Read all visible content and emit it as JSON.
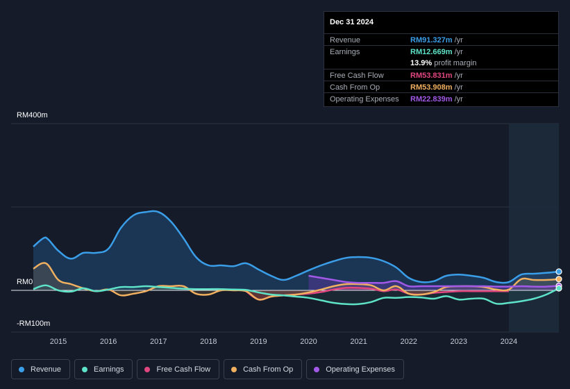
{
  "tooltip": {
    "date": "Dec 31 2024",
    "rows": [
      {
        "label": "Revenue",
        "value": "RM91.327m",
        "unit": " /yr",
        "color": "#3a9ee8"
      },
      {
        "label": "Earnings",
        "value": "RM12.669m",
        "unit": " /yr",
        "color": "#5ee3c8"
      },
      {
        "label": "",
        "value": "13.9%",
        "unit": " profit margin",
        "color": "#ffffff"
      },
      {
        "label": "Free Cash Flow",
        "value": "RM53.831m",
        "unit": " /yr",
        "color": "#e0467f"
      },
      {
        "label": "Cash From Op",
        "value": "RM53.908m",
        "unit": " /yr",
        "color": "#f0b060"
      },
      {
        "label": "Operating Expenses",
        "value": "RM22.839m",
        "unit": " /yr",
        "color": "#a259e8"
      }
    ]
  },
  "chart_data": {
    "type": "area",
    "title": "",
    "xlabel": "",
    "ylabel": "",
    "ylim": [
      -100,
      400
    ],
    "y_tick_labels": [
      "RM400m",
      "RM0",
      "-RM100m"
    ],
    "x_tick_labels": [
      "2015",
      "2016",
      "2017",
      "2018",
      "2019",
      "2020",
      "2021",
      "2022",
      "2023",
      "2024"
    ],
    "x_range": [
      2014.5,
      2025.0
    ],
    "forecast_start": 2024.0,
    "series": [
      {
        "name": "Revenue",
        "color": "#3a9ee8",
        "points": [
          [
            2014.5,
            105
          ],
          [
            2014.7,
            125
          ],
          [
            2014.8,
            122
          ],
          [
            2015.0,
            95
          ],
          [
            2015.25,
            76
          ],
          [
            2015.5,
            90
          ],
          [
            2015.75,
            90
          ],
          [
            2016.0,
            100
          ],
          [
            2016.25,
            150
          ],
          [
            2016.5,
            180
          ],
          [
            2016.75,
            188
          ],
          [
            2017.0,
            188
          ],
          [
            2017.25,
            165
          ],
          [
            2017.5,
            125
          ],
          [
            2017.75,
            80
          ],
          [
            2018.0,
            60
          ],
          [
            2018.25,
            60
          ],
          [
            2018.5,
            58
          ],
          [
            2018.75,
            65
          ],
          [
            2019.0,
            50
          ],
          [
            2019.25,
            35
          ],
          [
            2019.5,
            25
          ],
          [
            2019.75,
            35
          ],
          [
            2020.0,
            48
          ],
          [
            2020.25,
            60
          ],
          [
            2020.5,
            70
          ],
          [
            2020.75,
            78
          ],
          [
            2021.0,
            80
          ],
          [
            2021.25,
            78
          ],
          [
            2021.5,
            70
          ],
          [
            2021.75,
            55
          ],
          [
            2022.0,
            30
          ],
          [
            2022.25,
            20
          ],
          [
            2022.5,
            22
          ],
          [
            2022.75,
            35
          ],
          [
            2023.0,
            38
          ],
          [
            2023.25,
            35
          ],
          [
            2023.5,
            30
          ],
          [
            2023.75,
            20
          ],
          [
            2024.0,
            20
          ],
          [
            2024.25,
            38
          ],
          [
            2024.5,
            40
          ],
          [
            2024.75,
            42
          ],
          [
            2025.0,
            45
          ]
        ]
      },
      {
        "name": "Earnings",
        "color": "#5ee3c8",
        "points": [
          [
            2014.5,
            3
          ],
          [
            2014.75,
            12
          ],
          [
            2015.0,
            0
          ],
          [
            2015.25,
            -3
          ],
          [
            2015.5,
            5
          ],
          [
            2015.75,
            -2
          ],
          [
            2016.0,
            2
          ],
          [
            2016.25,
            8
          ],
          [
            2016.5,
            8
          ],
          [
            2016.75,
            10
          ],
          [
            2017.0,
            8
          ],
          [
            2017.25,
            6
          ],
          [
            2017.5,
            4
          ],
          [
            2017.75,
            3
          ],
          [
            2018.0,
            3
          ],
          [
            2018.25,
            3
          ],
          [
            2018.5,
            2
          ],
          [
            2018.75,
            1
          ],
          [
            2019.0,
            -5
          ],
          [
            2019.25,
            -10
          ],
          [
            2019.5,
            -12
          ],
          [
            2019.75,
            -15
          ],
          [
            2020.0,
            -18
          ],
          [
            2020.25,
            -24
          ],
          [
            2020.5,
            -30
          ],
          [
            2020.75,
            -33
          ],
          [
            2021.0,
            -33
          ],
          [
            2021.25,
            -28
          ],
          [
            2021.5,
            -18
          ],
          [
            2021.75,
            -18
          ],
          [
            2022.0,
            -16
          ],
          [
            2022.25,
            -17
          ],
          [
            2022.5,
            -20
          ],
          [
            2022.75,
            -14
          ],
          [
            2023.0,
            -22
          ],
          [
            2023.25,
            -20
          ],
          [
            2023.5,
            -20
          ],
          [
            2023.75,
            -32
          ],
          [
            2024.0,
            -30
          ],
          [
            2024.25,
            -26
          ],
          [
            2024.5,
            -20
          ],
          [
            2024.75,
            -10
          ],
          [
            2025.0,
            5
          ]
        ]
      },
      {
        "name": "Free Cash Flow",
        "color": "#e0467f",
        "points": [
          [
            2018.75,
            -2
          ],
          [
            2019.0,
            -22
          ],
          [
            2019.25,
            -15
          ],
          [
            2019.5,
            -12
          ],
          [
            2019.75,
            -10
          ],
          [
            2020.0,
            -8
          ],
          [
            2020.25,
            -4
          ],
          [
            2020.5,
            2
          ],
          [
            2020.75,
            6
          ],
          [
            2021.0,
            6
          ],
          [
            2021.25,
            4
          ],
          [
            2021.5,
            -2
          ],
          [
            2021.75,
            2
          ],
          [
            2022.0,
            -8
          ],
          [
            2022.25,
            -10
          ],
          [
            2022.5,
            -6
          ],
          [
            2022.75,
            -4
          ],
          [
            2023.0,
            -2
          ],
          [
            2023.25,
            -2
          ],
          [
            2023.5,
            -2
          ],
          [
            2023.75,
            -2
          ],
          [
            2024.0,
            -2
          ]
        ]
      },
      {
        "name": "Cash From Op",
        "color": "#f0b060",
        "points": [
          [
            2014.5,
            52
          ],
          [
            2014.75,
            65
          ],
          [
            2015.0,
            25
          ],
          [
            2015.25,
            15
          ],
          [
            2015.5,
            5
          ],
          [
            2015.75,
            -2
          ],
          [
            2016.0,
            2
          ],
          [
            2016.25,
            -12
          ],
          [
            2016.5,
            -8
          ],
          [
            2016.75,
            -2
          ],
          [
            2017.0,
            10
          ],
          [
            2017.25,
            10
          ],
          [
            2017.5,
            10
          ],
          [
            2017.75,
            -8
          ],
          [
            2018.0,
            -10
          ],
          [
            2018.25,
            0
          ],
          [
            2018.5,
            0
          ],
          [
            2018.75,
            -2
          ],
          [
            2019.0,
            -22
          ],
          [
            2019.25,
            -15
          ],
          [
            2019.5,
            -12
          ],
          [
            2019.75,
            -10
          ],
          [
            2020.0,
            -5
          ],
          [
            2020.25,
            2
          ],
          [
            2020.5,
            10
          ],
          [
            2020.75,
            15
          ],
          [
            2021.0,
            15
          ],
          [
            2021.25,
            12
          ],
          [
            2021.5,
            0
          ],
          [
            2021.75,
            10
          ],
          [
            2022.0,
            -8
          ],
          [
            2022.25,
            -10
          ],
          [
            2022.5,
            -4
          ],
          [
            2022.75,
            8
          ],
          [
            2023.0,
            10
          ],
          [
            2023.25,
            10
          ],
          [
            2023.5,
            8
          ],
          [
            2023.75,
            2
          ],
          [
            2024.0,
            2
          ],
          [
            2024.25,
            27
          ],
          [
            2024.5,
            25
          ],
          [
            2024.75,
            25
          ],
          [
            2025.0,
            27
          ]
        ]
      },
      {
        "name": "Operating Expenses",
        "color": "#a259e8",
        "points": [
          [
            2020.0,
            35
          ],
          [
            2020.25,
            30
          ],
          [
            2020.5,
            25
          ],
          [
            2020.75,
            20
          ],
          [
            2021.0,
            18
          ],
          [
            2021.25,
            18
          ],
          [
            2021.5,
            18
          ],
          [
            2021.75,
            22
          ],
          [
            2022.0,
            10
          ],
          [
            2022.25,
            10
          ],
          [
            2022.5,
            10
          ],
          [
            2022.75,
            10
          ],
          [
            2023.0,
            10
          ],
          [
            2023.25,
            10
          ],
          [
            2023.5,
            10
          ],
          [
            2023.75,
            9
          ],
          [
            2024.0,
            9
          ],
          [
            2024.25,
            10
          ],
          [
            2024.5,
            9
          ],
          [
            2024.75,
            9
          ],
          [
            2025.0,
            11
          ]
        ]
      }
    ]
  },
  "legend": [
    {
      "label": "Revenue",
      "color": "#3a9ee8"
    },
    {
      "label": "Earnings",
      "color": "#5ee3c8"
    },
    {
      "label": "Free Cash Flow",
      "color": "#e0467f"
    },
    {
      "label": "Cash From Op",
      "color": "#f0b060"
    },
    {
      "label": "Operating Expenses",
      "color": "#a259e8"
    }
  ]
}
